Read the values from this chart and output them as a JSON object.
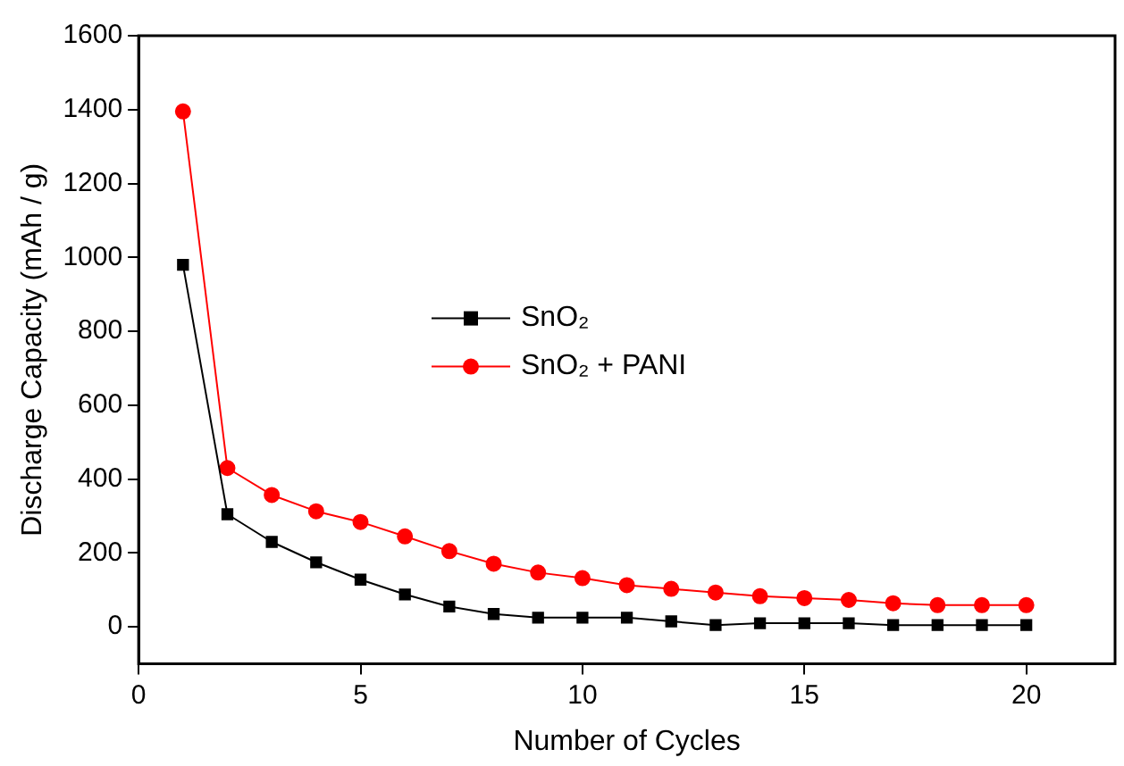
{
  "chart_data": {
    "type": "line",
    "xlabel": "Number of Cycles",
    "ylabel": "Discharge Capacity (mAh / g)",
    "x": [
      1,
      2,
      3,
      4,
      5,
      6,
      7,
      8,
      9,
      10,
      11,
      12,
      13,
      14,
      15,
      16,
      17,
      18,
      19,
      20
    ],
    "series": [
      {
        "name": "SnO₂",
        "color": "#000000",
        "marker": "square",
        "values": [
          980,
          305,
          230,
          175,
          128,
          88,
          55,
          35,
          25,
          25,
          25,
          15,
          5,
          10,
          10,
          10,
          5,
          5,
          5,
          5
        ]
      },
      {
        "name": "SnO₂ + PANI",
        "color": "#ff0000",
        "marker": "circle",
        "values": [
          1395,
          430,
          357,
          313,
          284,
          245,
          205,
          171,
          147,
          132,
          113,
          103,
          93,
          83,
          78,
          73,
          64,
          59,
          59,
          59
        ]
      }
    ],
    "xlim": [
      0,
      22
    ],
    "xticks": [
      0,
      5,
      10,
      15,
      20
    ],
    "ylim": [
      -100,
      1600
    ],
    "yticks": [
      0,
      200,
      400,
      600,
      800,
      1000,
      1200,
      1400,
      1600
    ],
    "grid": false,
    "legend": "center",
    "line_style": "solid"
  }
}
